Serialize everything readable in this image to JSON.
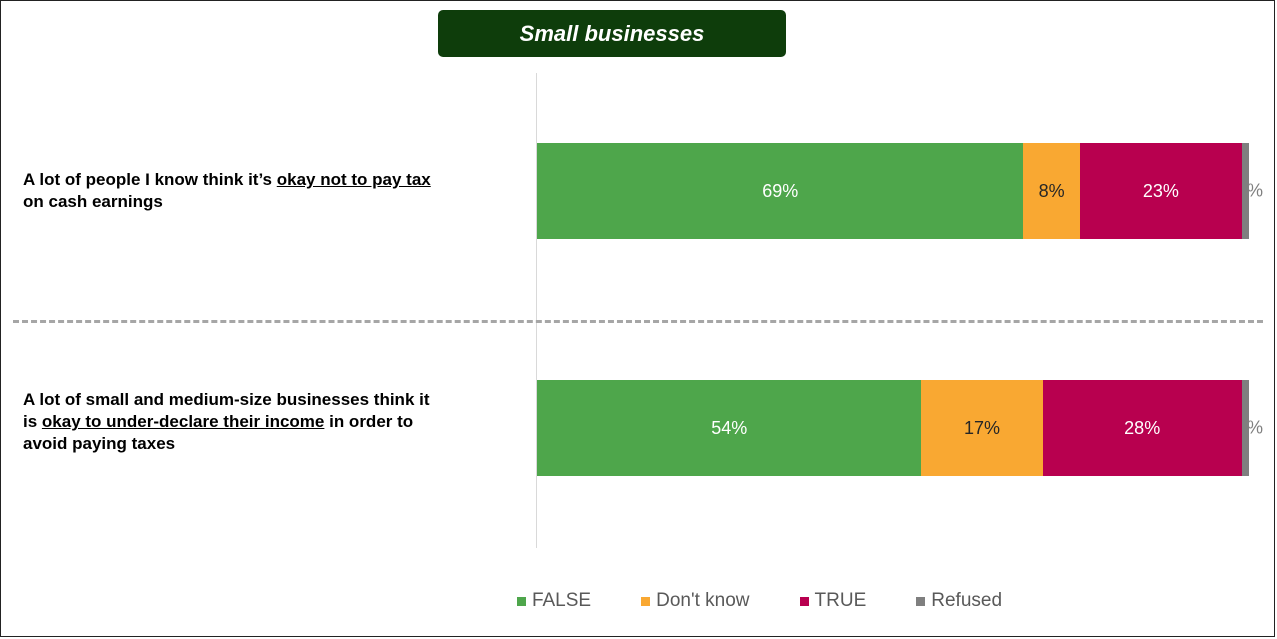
{
  "title": "Small businesses",
  "questions": [
    {
      "pre": "A lot of people I know think it’s ",
      "underlined": "okay not to pay tax",
      "post": " on cash earnings"
    },
    {
      "pre": "A lot of small and medium-size businesses think it is ",
      "underlined": "okay to under-declare their income",
      "post": " in order to avoid paying taxes"
    }
  ],
  "legend": [
    "FALSE",
    "Don't know",
    "TRUE",
    "Refused"
  ],
  "colors": {
    "FALSE": "#4ea64b",
    "Don't know": "#f9a832",
    "TRUE": "#b8004f",
    "Refused": "#7f7f7f"
  },
  "chart_data": {
    "type": "bar",
    "orientation": "horizontal",
    "stacked": true,
    "percent_scale": true,
    "categories": [
      "A lot of people I know think it’s okay not to pay tax on cash earnings",
      "A lot of small and medium-size businesses think it is okay to under-declare their income in order to avoid paying taxes"
    ],
    "series": [
      {
        "name": "FALSE",
        "values": [
          69,
          54
        ],
        "labels": [
          "69%",
          "54%"
        ]
      },
      {
        "name": "Don't know",
        "values": [
          8,
          17
        ],
        "labels": [
          "8%",
          "17%"
        ]
      },
      {
        "name": "TRUE",
        "values": [
          23,
          28
        ],
        "labels": [
          "23%",
          "28%"
        ]
      },
      {
        "name": "Refused",
        "values": [
          1,
          1
        ],
        "labels": [
          "%",
          "%"
        ]
      }
    ],
    "legend_position": "bottom"
  }
}
